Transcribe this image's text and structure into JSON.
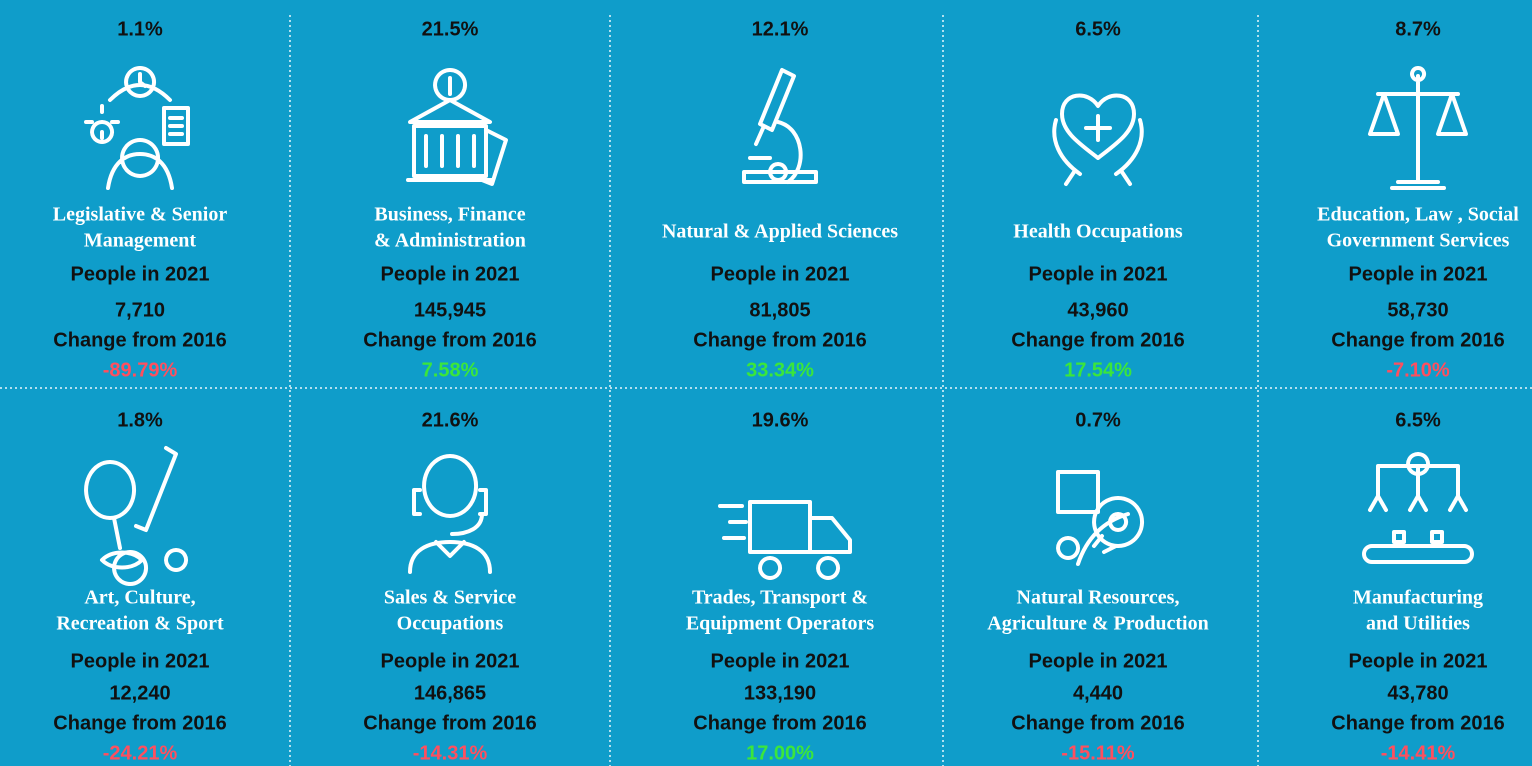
{
  "cards": [
    {
      "share": "1.1%",
      "title_lines": [
        "Legislative & Senior",
        "Management"
      ],
      "people_label": "People in 2021",
      "people": "7,710",
      "change_label": "Change from 2016",
      "change": "-89.79%"
    },
    {
      "share": "21.5%",
      "title_lines": [
        "Business, Finance",
        "& Administration"
      ],
      "people_label": "People in 2021",
      "people": "145,945",
      "change_label": "Change from 2016",
      "change": "7.58%"
    },
    {
      "share": "12.1%",
      "title_lines": [
        "Natural & Applied Sciences"
      ],
      "people_label": "People in 2021",
      "people": "81,805",
      "change_label": "Change from 2016",
      "change": "33.34%"
    },
    {
      "share": "6.5%",
      "title_lines": [
        "Health Occupations"
      ],
      "people_label": "People in 2021",
      "people": "43,960",
      "change_label": "Change from 2016",
      "change": "17.54%"
    },
    {
      "share": "8.7%",
      "title_lines": [
        "Education, Law , Social",
        "Government Services"
      ],
      "people_label": "People in 2021",
      "people": "58,730",
      "change_label": "Change from 2016",
      "change": "-7.10%"
    },
    {
      "share": "1.8%",
      "title_lines": [
        "Art, Culture,",
        "Recreation & Sport"
      ],
      "people_label": "People in 2021",
      "people": "12,240",
      "change_label": "Change from 2016",
      "change": "-24.21%"
    },
    {
      "share": "21.6%",
      "title_lines": [
        "Sales & Service",
        "Occupations"
      ],
      "people_label": "People in 2021",
      "people": "146,865",
      "change_label": "Change from 2016",
      "change": "-14.31%"
    },
    {
      "share": "19.6%",
      "title_lines": [
        "Trades, Transport &",
        "Equipment Operators"
      ],
      "people_label": "People in 2021",
      "people": "133,190",
      "change_label": "Change from 2016",
      "change": "17.00%"
    },
    {
      "share": "0.7%",
      "title_lines": [
        "Natural Resources,",
        "Agriculture & Production"
      ],
      "people_label": "People in 2021",
      "people": "4,440",
      "change_label": "Change from 2016",
      "change": "-15.11%"
    },
    {
      "share": "6.5%",
      "title_lines": [
        "Manufacturing",
        "and Utilities"
      ],
      "people_label": "People in 2021",
      "people": "43,780",
      "change_label": "Change from 2016",
      "change": "-14.41%"
    }
  ],
  "colors": {
    "positive": "#3be63b",
    "negative": "#ff4f5e"
  }
}
